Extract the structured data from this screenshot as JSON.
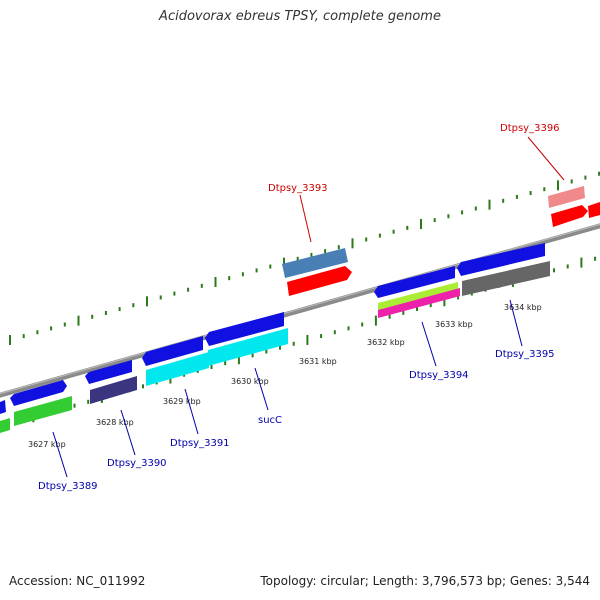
{
  "title": "Acidovorax ebreus TPSY, complete genome",
  "accession_text": "Accession: NC_011992",
  "summary_text": "Topology: circular; Length: 3,796,573 bp; Genes: 3,544",
  "colors": {
    "backbone": "#8a8a8a",
    "tick": "#2a7a1a",
    "label_forward": "#cc0000",
    "label_reverse": "#0000aa",
    "gene_blue": "#1010e0",
    "cds_red": "#ff0000",
    "cds_steel": "#4a7fb5",
    "cds_pink_light": "#f08a8a",
    "cds_green": "#33cc33",
    "cds_cyan": "#00e8ee",
    "cds_indigo": "#3b3580",
    "cds_lime": "#aaee33",
    "cds_magenta": "#ee22aa",
    "cds_gray": "#666666"
  },
  "axis_labels": [
    "3627 kbp",
    "3628 kbp",
    "3629 kbp",
    "3630 kbp",
    "3631 kbp",
    "3632 kbp",
    "3633 kbp",
    "3634 kbp"
  ],
  "genes": {
    "dtpsy_3389": "Dtpsy_3389",
    "dtpsy_3390": "Dtpsy_3390",
    "dtpsy_3391": "Dtpsy_3391",
    "succ": "sucC",
    "dtpsy_3393": "Dtpsy_3393",
    "dtpsy_3394": "Dtpsy_3394",
    "dtpsy_3395": "Dtpsy_3395",
    "dtpsy_3396": "Dtpsy_3396"
  }
}
